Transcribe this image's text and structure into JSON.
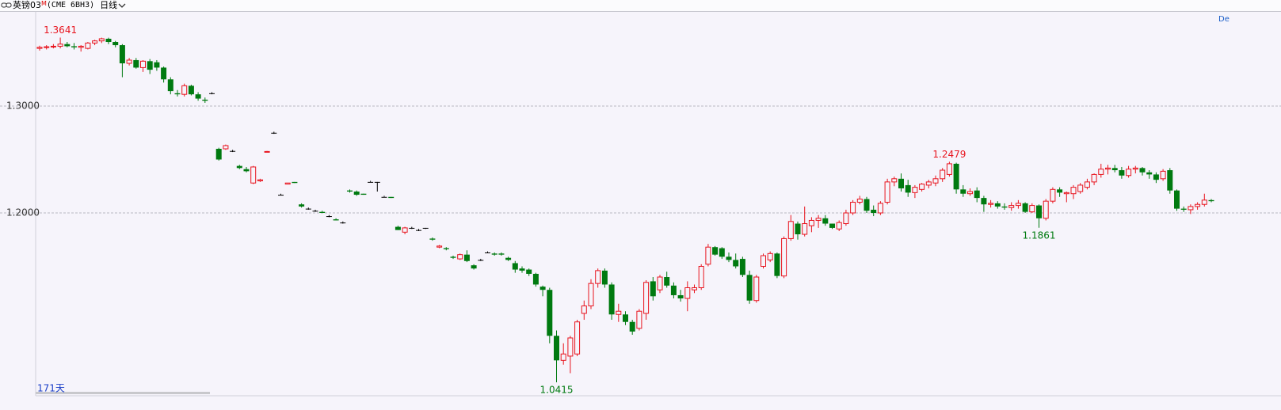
{
  "chart_data": {
    "type": "candlestick",
    "title": "英镑03",
    "title_suffix": "M",
    "symbol": "(CME 6BH3)",
    "period": "日线",
    "bars_label": "171天",
    "corner_label": "De",
    "up_color": "#e8141e",
    "down_color": "#007a10",
    "flat_color": "#000000",
    "ylim": [
      1.0289,
      1.3889
    ],
    "yticks": [
      {
        "value": 1.3,
        "label": "1.3000"
      },
      {
        "value": 1.2,
        "label": "1.2000"
      }
    ],
    "grid": true,
    "annotations": [
      {
        "candle": 3,
        "value": 1.3641
      },
      {
        "candle": 132,
        "value": 1.2479
      },
      {
        "candle": 145,
        "value": 1.1861
      },
      {
        "candle": 75,
        "value": 1.0415
      }
    ],
    "ohlc": [
      [
        1.354,
        1.3565,
        1.352,
        1.355
      ],
      [
        1.355,
        1.357,
        1.353,
        1.3555
      ],
      [
        1.3555,
        1.358,
        1.354,
        1.356
      ],
      [
        1.356,
        1.3641,
        1.354,
        1.358
      ],
      [
        1.358,
        1.36,
        1.355,
        1.356
      ],
      [
        1.356,
        1.359,
        1.353,
        1.355
      ],
      [
        1.355,
        1.357,
        1.351,
        1.356
      ],
      [
        1.354,
        1.36,
        1.353,
        1.359
      ],
      [
        1.359,
        1.362,
        1.357,
        1.361
      ],
      [
        1.361,
        1.364,
        1.359,
        1.363
      ],
      [
        1.363,
        1.364,
        1.358,
        1.36
      ],
      [
        1.36,
        1.361,
        1.355,
        1.357
      ],
      [
        1.357,
        1.358,
        1.327,
        1.34
      ],
      [
        1.34,
        1.345,
        1.338,
        1.343
      ],
      [
        1.343,
        1.345,
        1.335,
        1.336
      ],
      [
        1.336,
        1.343,
        1.332,
        1.342
      ],
      [
        1.342,
        1.344,
        1.33,
        1.334
      ],
      [
        1.341,
        1.343,
        1.333,
        1.336
      ],
      [
        1.336,
        1.337,
        1.322,
        1.325
      ],
      [
        1.325,
        1.327,
        1.311,
        1.314
      ],
      [
        1.312,
        1.315,
        1.309,
        1.311
      ],
      [
        1.311,
        1.321,
        1.309,
        1.319
      ],
      [
        1.319,
        1.32,
        1.31,
        1.311
      ],
      [
        1.311,
        1.313,
        1.305,
        1.307
      ],
      [
        1.306,
        1.308,
        1.303,
        1.305
      ],
      [
        1.312,
        1.313,
        1.311,
        1.312
      ],
      [
        1.26,
        1.261,
        1.249,
        1.25
      ],
      [
        1.26,
        1.264,
        1.259,
        1.263
      ],
      [
        1.258,
        1.259,
        1.257,
        1.258
      ],
      [
        1.244,
        1.245,
        1.241,
        1.242
      ],
      [
        1.241,
        1.243,
        1.238,
        1.239
      ],
      [
        1.228,
        1.244,
        1.227,
        1.243
      ],
      [
        1.23,
        1.232,
        1.229,
        1.231
      ],
      [
        1.257,
        1.258,
        1.257,
        1.2575
      ],
      [
        1.275,
        1.276,
        1.274,
        1.275
      ],
      [
        1.217,
        1.218,
        1.217,
        1.217
      ],
      [
        1.227,
        1.228,
        1.227,
        1.228
      ],
      [
        1.229,
        1.229,
        1.228,
        1.228
      ],
      [
        1.208,
        1.209,
        1.205,
        1.206
      ],
      [
        1.204,
        1.205,
        1.203,
        1.204
      ],
      [
        1.202,
        1.203,
        1.201,
        1.202
      ],
      [
        1.201,
        1.202,
        1.2,
        1.2
      ],
      [
        1.197,
        1.198,
        1.196,
        1.197
      ],
      [
        1.194,
        1.195,
        1.193,
        1.193
      ],
      [
        1.191,
        1.192,
        1.19,
        1.191
      ],
      [
        1.221,
        1.222,
        1.219,
        1.22
      ],
      [
        1.22,
        1.221,
        1.216,
        1.217
      ],
      [
        1.218,
        1.218,
        1.217,
        1.217
      ],
      [
        1.229,
        1.23,
        1.229,
        1.229
      ],
      [
        1.229,
        1.229,
        1.22,
        1.229
      ],
      [
        1.215,
        1.216,
        1.215,
        1.215
      ],
      [
        1.215,
        1.215,
        1.214,
        1.214
      ],
      [
        1.187,
        1.188,
        1.184,
        1.184
      ],
      [
        1.182,
        1.187,
        1.18,
        1.186
      ],
      [
        1.186,
        1.187,
        1.185,
        1.186
      ],
      [
        1.184,
        1.185,
        1.183,
        1.184
      ],
      [
        1.186,
        1.186,
        1.185,
        1.186
      ],
      [
        1.176,
        1.177,
        1.174,
        1.175
      ],
      [
        1.168,
        1.17,
        1.167,
        1.169
      ],
      [
        1.167,
        1.168,
        1.165,
        1.166
      ],
      [
        1.159,
        1.16,
        1.157,
        1.158
      ],
      [
        1.157,
        1.162,
        1.156,
        1.161
      ],
      [
        1.161,
        1.165,
        1.154,
        1.155
      ],
      [
        1.151,
        1.152,
        1.147,
        1.148
      ],
      [
        1.156,
        1.157,
        1.155,
        1.156
      ],
      [
        1.163,
        1.164,
        1.163,
        1.163
      ],
      [
        1.162,
        1.163,
        1.16,
        1.161
      ],
      [
        1.162,
        1.163,
        1.16,
        1.161
      ],
      [
        1.158,
        1.159,
        1.155,
        1.156
      ],
      [
        1.153,
        1.155,
        1.144,
        1.147
      ],
      [
        1.148,
        1.15,
        1.144,
        1.146
      ],
      [
        1.147,
        1.148,
        1.141,
        1.143
      ],
      [
        1.143,
        1.144,
        1.131,
        1.133
      ],
      [
        1.131,
        1.132,
        1.122,
        1.128
      ],
      [
        1.128,
        1.13,
        1.078,
        1.085
      ],
      [
        1.085,
        1.09,
        1.0415,
        1.062
      ],
      [
        1.062,
        1.078,
        1.058,
        1.068
      ],
      [
        1.066,
        1.085,
        1.05,
        1.083
      ],
      [
        1.068,
        1.1,
        1.066,
        1.098
      ],
      [
        1.106,
        1.118,
        1.1,
        1.113
      ],
      [
        1.113,
        1.138,
        1.11,
        1.134
      ],
      [
        1.134,
        1.148,
        1.13,
        1.146
      ],
      [
        1.146,
        1.148,
        1.13,
        1.133
      ],
      [
        1.133,
        1.135,
        1.1,
        1.105
      ],
      [
        1.105,
        1.115,
        1.098,
        1.108
      ],
      [
        1.105,
        1.108,
        1.095,
        1.098
      ],
      [
        1.098,
        1.1,
        1.086,
        1.089
      ],
      [
        1.092,
        1.11,
        1.09,
        1.108
      ],
      [
        1.106,
        1.137,
        1.1,
        1.135
      ],
      [
        1.136,
        1.14,
        1.118,
        1.122
      ],
      [
        1.128,
        1.142,
        1.125,
        1.14
      ],
      [
        1.14,
        1.145,
        1.13,
        1.132
      ],
      [
        1.132,
        1.135,
        1.12,
        1.123
      ],
      [
        1.123,
        1.128,
        1.117,
        1.12
      ],
      [
        1.12,
        1.136,
        1.108,
        1.13
      ],
      [
        1.128,
        1.133,
        1.125,
        1.13
      ],
      [
        1.13,
        1.152,
        1.128,
        1.15
      ],
      [
        1.152,
        1.171,
        1.15,
        1.168
      ],
      [
        1.168,
        1.169,
        1.16,
        1.161
      ],
      [
        1.167,
        1.168,
        1.157,
        1.159
      ],
      [
        1.159,
        1.163,
        1.154,
        1.156
      ],
      [
        1.156,
        1.162,
        1.148,
        1.15
      ],
      [
        1.157,
        1.159,
        1.14,
        1.142
      ],
      [
        1.142,
        1.146,
        1.115,
        1.118
      ],
      [
        1.118,
        1.142,
        1.116,
        1.14
      ],
      [
        1.15,
        1.162,
        1.148,
        1.16
      ],
      [
        1.156,
        1.164,
        1.154,
        1.162
      ],
      [
        1.162,
        1.163,
        1.139,
        1.141
      ],
      [
        1.141,
        1.178,
        1.139,
        1.176
      ],
      [
        1.176,
        1.198,
        1.174,
        1.192
      ],
      [
        1.19,
        1.192,
        1.175,
        1.18
      ],
      [
        1.18,
        1.206,
        1.178,
        1.19
      ],
      [
        1.188,
        1.196,
        1.182,
        1.193
      ],
      [
        1.193,
        1.198,
        1.186,
        1.195
      ],
      [
        1.195,
        1.198,
        1.188,
        1.19
      ],
      [
        1.19,
        1.19,
        1.185,
        1.186
      ],
      [
        1.185,
        1.193,
        1.183,
        1.191
      ],
      [
        1.19,
        1.203,
        1.188,
        1.2
      ],
      [
        1.2,
        1.212,
        1.198,
        1.21
      ],
      [
        1.21,
        1.216,
        1.208,
        1.213
      ],
      [
        1.213,
        1.215,
        1.2,
        1.202
      ],
      [
        1.203,
        1.207,
        1.197,
        1.2
      ],
      [
        1.2,
        1.211,
        1.198,
        1.209
      ],
      [
        1.21,
        1.232,
        1.208,
        1.229
      ],
      [
        1.229,
        1.234,
        1.225,
        1.232
      ],
      [
        1.232,
        1.237,
        1.22,
        1.223
      ],
      [
        1.226,
        1.231,
        1.215,
        1.219
      ],
      [
        1.219,
        1.226,
        1.214,
        1.224
      ],
      [
        1.222,
        1.228,
        1.22,
        1.227
      ],
      [
        1.226,
        1.231,
        1.223,
        1.229
      ],
      [
        1.228,
        1.235,
        1.225,
        1.232
      ],
      [
        1.232,
        1.242,
        1.229,
        1.24
      ],
      [
        1.236,
        1.2479,
        1.234,
        1.246
      ],
      [
        1.246,
        1.247,
        1.218,
        1.222
      ],
      [
        1.222,
        1.226,
        1.215,
        1.218
      ],
      [
        1.218,
        1.223,
        1.216,
        1.22
      ],
      [
        1.221,
        1.224,
        1.21,
        1.214
      ],
      [
        1.214,
        1.216,
        1.201,
        1.208
      ],
      [
        1.208,
        1.212,
        1.205,
        1.209
      ],
      [
        1.209,
        1.211,
        1.204,
        1.206
      ],
      [
        1.206,
        1.209,
        1.203,
        1.205
      ],
      [
        1.205,
        1.21,
        1.202,
        1.207
      ],
      [
        1.207,
        1.212,
        1.204,
        1.209
      ],
      [
        1.209,
        1.21,
        1.2,
        1.201
      ],
      [
        1.201,
        1.209,
        1.2,
        1.207
      ],
      [
        1.207,
        1.208,
        1.1861,
        1.195
      ],
      [
        1.195,
        1.213,
        1.193,
        1.211
      ],
      [
        1.211,
        1.224,
        1.209,
        1.222
      ],
      [
        1.222,
        1.224,
        1.215,
        1.219
      ],
      [
        1.218,
        1.22,
        1.21,
        1.219
      ],
      [
        1.218,
        1.226,
        1.213,
        1.224
      ],
      [
        1.22,
        1.228,
        1.218,
        1.226
      ],
      [
        1.224,
        1.232,
        1.222,
        1.229
      ],
      [
        1.229,
        1.237,
        1.226,
        1.236
      ],
      [
        1.236,
        1.246,
        1.233,
        1.241
      ],
      [
        1.241,
        1.245,
        1.236,
        1.242
      ],
      [
        1.242,
        1.245,
        1.238,
        1.24
      ],
      [
        1.24,
        1.243,
        1.232,
        1.235
      ],
      [
        1.235,
        1.244,
        1.233,
        1.241
      ],
      [
        1.241,
        1.244,
        1.237,
        1.242
      ],
      [
        1.242,
        1.243,
        1.235,
        1.238
      ],
      [
        1.238,
        1.24,
        1.232,
        1.236
      ],
      [
        1.236,
        1.238,
        1.228,
        1.231
      ],
      [
        1.232,
        1.241,
        1.23,
        1.239
      ],
      [
        1.24,
        1.242,
        1.218,
        1.221
      ],
      [
        1.221,
        1.222,
        1.202,
        1.204
      ],
      [
        1.204,
        1.206,
        1.201,
        1.203
      ],
      [
        1.203,
        1.208,
        1.199,
        1.206
      ],
      [
        1.206,
        1.21,
        1.203,
        1.208
      ],
      [
        1.208,
        1.218,
        1.206,
        1.212
      ],
      [
        1.212,
        1.213,
        1.21,
        1.211
      ]
    ]
  }
}
